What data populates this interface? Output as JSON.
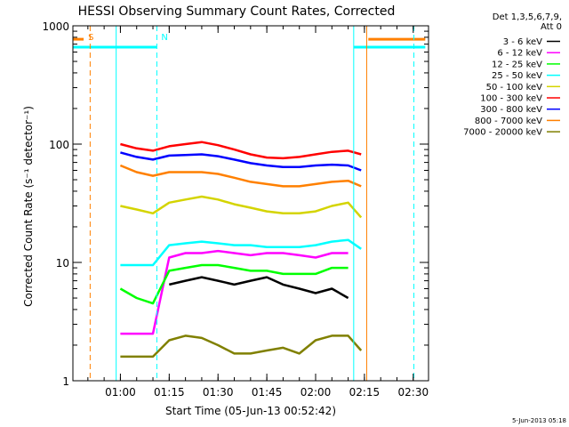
{
  "chart_data": {
    "type": "line",
    "title": "HESSI Observing Summary Count Rates, Corrected",
    "xlabel": "Start Time (05-Jun-13 00:52:42)",
    "ylabel": "Corrected Count Rate (s⁻¹ detector⁻¹)",
    "x_tick_labels": [
      "01:00",
      "01:15",
      "01:30",
      "01:45",
      "02:00",
      "02:15",
      "02:30"
    ],
    "x_tick_minutes": [
      67.3,
      82.3,
      97.3,
      112.3,
      127.3,
      142.3,
      157.3
    ],
    "x_range_minutes": [
      52.7,
      162.0
    ],
    "yscale": "log",
    "ylim": [
      1,
      1000
    ],
    "y_tick_labels": [
      "1",
      "10",
      "100",
      "1000"
    ],
    "legend_header": [
      "Det 1,3,5,6,7,9,",
      "Att 0"
    ],
    "legend_position": "outside-right",
    "series": [
      {
        "name": "3 - 6 keV",
        "color": "#000000",
        "x": [
          67.3,
          72.3,
          77.3,
          82.3,
          87.3,
          92.3,
          97.3,
          102.3,
          107.3,
          112.3,
          117.3,
          122.3,
          127.3,
          132.3,
          137.3,
          141.3
        ],
        "y": [
          0,
          0,
          0,
          6.5,
          7.0,
          7.5,
          7.0,
          6.5,
          7.0,
          7.5,
          6.5,
          6.0,
          5.5,
          6.0,
          5.0,
          0
        ]
      },
      {
        "name": "6 - 12 keV",
        "color": "#ff00ff",
        "x": [
          67.3,
          72.3,
          77.3,
          82.3,
          87.3,
          92.3,
          97.3,
          102.3,
          107.3,
          112.3,
          117.3,
          122.3,
          127.3,
          132.3,
          137.3,
          141.3
        ],
        "y": [
          2.5,
          2.5,
          2.5,
          11,
          12,
          12,
          12.5,
          12,
          11.5,
          12,
          12,
          11.5,
          11,
          12,
          12,
          0
        ]
      },
      {
        "name": "12 - 25 keV",
        "color": "#00ff00",
        "x": [
          67.3,
          72.3,
          77.3,
          82.3,
          87.3,
          92.3,
          97.3,
          102.3,
          107.3,
          112.3,
          117.3,
          122.3,
          127.3,
          132.3,
          137.3,
          141.3
        ],
        "y": [
          6.0,
          5.0,
          4.5,
          8.5,
          9.0,
          9.5,
          9.5,
          9.0,
          8.5,
          8.5,
          8.0,
          8.0,
          8.0,
          9.0,
          9.0,
          0
        ]
      },
      {
        "name": "25 - 50 keV",
        "color": "#00ffff",
        "x": [
          67.3,
          72.3,
          77.3,
          82.3,
          87.3,
          92.3,
          97.3,
          102.3,
          107.3,
          112.3,
          117.3,
          122.3,
          127.3,
          132.3,
          137.3,
          141.3
        ],
        "y": [
          9.5,
          9.5,
          9.5,
          14,
          14.5,
          15,
          14.5,
          14,
          14,
          13.5,
          13.5,
          13.5,
          14,
          15,
          15.5,
          13
        ]
      },
      {
        "name": "50 - 100 keV",
        "color": "#d4d400",
        "x": [
          67.3,
          72.3,
          77.3,
          82.3,
          87.3,
          92.3,
          97.3,
          102.3,
          107.3,
          112.3,
          117.3,
          122.3,
          127.3,
          132.3,
          137.3,
          141.3
        ],
        "y": [
          30,
          28,
          26,
          32,
          34,
          36,
          34,
          31,
          29,
          27,
          26,
          26,
          27,
          30,
          32,
          24
        ]
      },
      {
        "name": "100 - 300 keV",
        "color": "#ff0000",
        "x": [
          67.3,
          72.3,
          77.3,
          82.3,
          87.3,
          92.3,
          97.3,
          102.3,
          107.3,
          112.3,
          117.3,
          122.3,
          127.3,
          132.3,
          137.3,
          141.3
        ],
        "y": [
          100,
          92,
          88,
          96,
          100,
          104,
          98,
          90,
          82,
          77,
          76,
          78,
          82,
          86,
          88,
          82
        ]
      },
      {
        "name": "300 - 800 keV",
        "color": "#0000ff",
        "x": [
          67.3,
          72.3,
          77.3,
          82.3,
          87.3,
          92.3,
          97.3,
          102.3,
          107.3,
          112.3,
          117.3,
          122.3,
          127.3,
          132.3,
          137.3,
          141.3
        ],
        "y": [
          85,
          78,
          74,
          80,
          81,
          82,
          79,
          74,
          69,
          66,
          64,
          64,
          66,
          67,
          66,
          60
        ]
      },
      {
        "name": "800 - 7000 keV",
        "color": "#ff8000",
        "x": [
          67.3,
          72.3,
          77.3,
          82.3,
          87.3,
          92.3,
          97.3,
          102.3,
          107.3,
          112.3,
          117.3,
          122.3,
          127.3,
          132.3,
          137.3,
          141.3
        ],
        "y": [
          66,
          58,
          54,
          58,
          58,
          58,
          56,
          52,
          48,
          46,
          44,
          44,
          46,
          48,
          49,
          44
        ]
      },
      {
        "name": "7000 - 20000 keV",
        "color": "#808000",
        "x": [
          67.3,
          72.3,
          77.3,
          82.3,
          87.3,
          92.3,
          97.3,
          102.3,
          107.3,
          112.3,
          117.3,
          122.3,
          127.3,
          132.3,
          137.3,
          141.3
        ],
        "y": [
          1.6,
          1.6,
          1.6,
          2.2,
          2.4,
          2.3,
          2.0,
          1.7,
          1.7,
          1.8,
          1.9,
          1.7,
          2.2,
          2.4,
          2.4,
          1.8
        ]
      }
    ],
    "annotations": [
      {
        "text": "S",
        "color": "#ff8000",
        "x_minute": 56.0
      },
      {
        "text": "N",
        "color": "#00ffff",
        "x_minute": 78.5
      }
    ],
    "vertical_markers": [
      {
        "color": "#ff8000",
        "style": "dashed",
        "x_minute": 58.0
      },
      {
        "color": "#00ffff",
        "style": "solid",
        "x_minute": 66.0
      },
      {
        "color": "#00ffff",
        "style": "dashed",
        "x_minute": 78.5
      },
      {
        "color": "#00ffff",
        "style": "solid",
        "x_minute": 139.0
      },
      {
        "color": "#ff8000",
        "style": "solid",
        "x_minute": 143.0
      },
      {
        "color": "#00ffff",
        "style": "dashed",
        "x_minute": 157.5
      }
    ],
    "flag_bars": [
      {
        "color": "#ff8000",
        "y_value": 770,
        "x_minutes": [
          [
            52.7,
            56.0
          ],
          [
            143.5,
            161.0
          ]
        ]
      },
      {
        "color": "#00ffff",
        "y_value": 660,
        "x_minutes": [
          [
            52.7,
            78.5
          ],
          [
            139.0,
            161.0
          ]
        ]
      }
    ]
  },
  "footer": {
    "timestamp": "5-Jun-2013 05:18"
  }
}
